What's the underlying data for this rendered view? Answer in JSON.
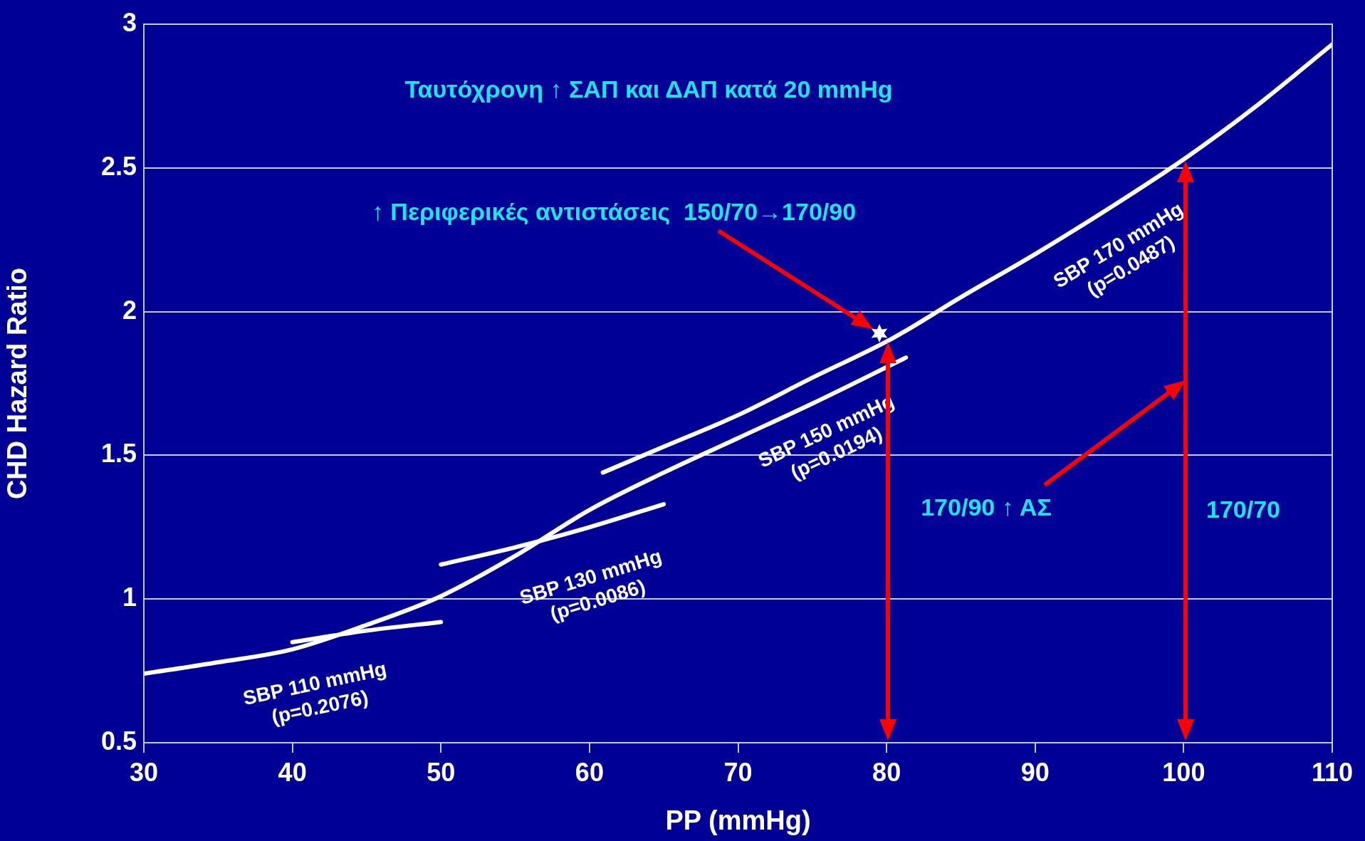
{
  "chart_data": {
    "type": "line",
    "xlabel": "PP (mmHg)",
    "ylabel": "CHD Hazard Ratio",
    "xlim": [
      30,
      110
    ],
    "xticks": [
      30,
      40,
      50,
      60,
      70,
      80,
      90,
      100,
      110
    ],
    "ylim": [
      0.5,
      3
    ],
    "yticks": [
      0.5,
      1,
      1.5,
      2,
      2.5,
      3
    ],
    "grid": "y",
    "legend": false,
    "marker": "none",
    "series": [
      {
        "name": "SBP 110 mmHg",
        "color": "#ffffff",
        "x": [
          40,
          45,
          50
        ],
        "values": [
          0.85,
          0.89,
          0.92
        ]
      },
      {
        "name": "SBP 130 mmHg",
        "color": "#ffffff",
        "x": [
          50,
          55,
          60,
          65
        ],
        "values": [
          1.12,
          1.18,
          1.25,
          1.33
        ]
      },
      {
        "name": "SBP 150 mmHg",
        "color": "#ffffff",
        "x": [
          30,
          35,
          40,
          45,
          50,
          55,
          60,
          65,
          70,
          75,
          81.3
        ],
        "values": [
          0.74,
          0.78,
          0.825,
          0.91,
          1.01,
          1.15,
          1.31,
          1.44,
          1.56,
          1.68,
          1.84
        ]
      },
      {
        "name": "SBP 170 mmHg",
        "color": "#ffffff",
        "x": [
          60.9,
          65,
          70,
          75,
          80.4,
          85,
          90,
          95,
          100,
          105,
          110
        ],
        "values": [
          1.44,
          1.53,
          1.64,
          1.77,
          1.907,
          2.05,
          2.2,
          2.36,
          2.53,
          2.72,
          2.93
        ]
      }
    ],
    "annotations": [
      "Ταυτόχρονη ↑ ΣΑΠ και ΔΑΠ κατά 20 mmHg",
      "↑ Περιφερικές αντιστάσεις  150/70→170/90",
      "170/90 ↑ ΑΣ",
      "170/70",
      "(p=0.2076)",
      "(p=0.0086)",
      "(p=0.0194)",
      "(p=0.0487)"
    ]
  }
}
